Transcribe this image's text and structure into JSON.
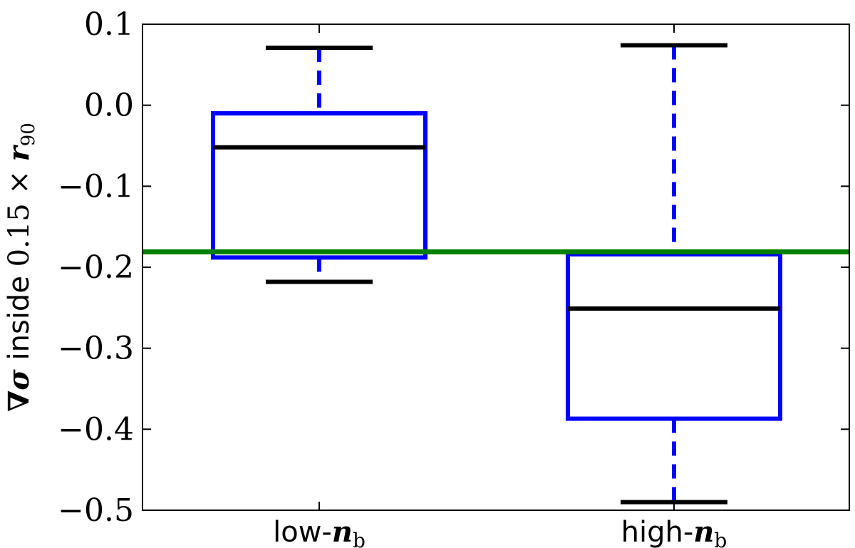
{
  "chart_data": {
    "type": "box",
    "ylabel": "∇σ inside 0.15 × r90",
    "ylim": [
      -0.5,
      0.1
    ],
    "yticks": [
      0.1,
      0.0,
      -0.1,
      -0.2,
      -0.3,
      -0.4,
      -0.5
    ],
    "ytick_labels": [
      "0.1",
      "0.0",
      "−0.1",
      "−0.2",
      "−0.3",
      "−0.4",
      "−0.5"
    ],
    "categories": [
      {
        "prefix": "low-",
        "var": "n",
        "sub": "b"
      },
      {
        "prefix": "high-",
        "var": "n",
        "sub": "b"
      }
    ],
    "boxes": [
      {
        "whisker_low": -0.218,
        "q1": -0.188,
        "median": -0.052,
        "q3": -0.01,
        "whisker_high": 0.071
      },
      {
        "whisker_low": -0.49,
        "q1": -0.387,
        "median": -0.251,
        "q3": -0.184,
        "whisker_high": 0.074
      }
    ],
    "reference_line": -0.181,
    "colors": {
      "box": "#0000ff",
      "median": "#000000",
      "whisker": "#0000ff",
      "cap": "#000000",
      "reference": "#007f00"
    },
    "grid": false
  }
}
